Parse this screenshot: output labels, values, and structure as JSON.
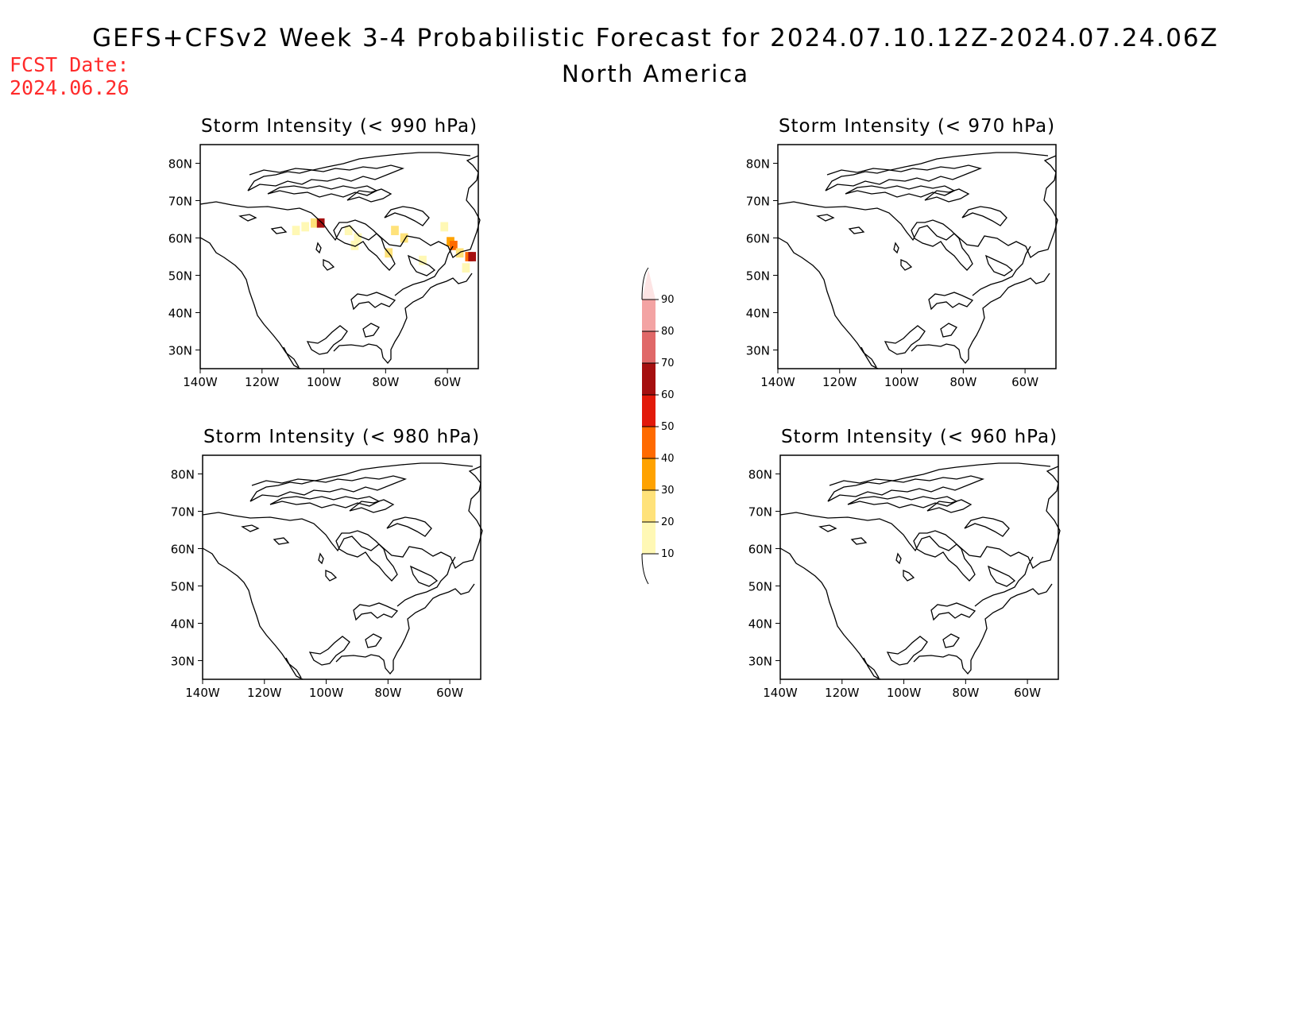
{
  "header": {
    "title": "GEFS+CFSv2 Week 3-4 Probabilistic Forecast for 2024.07.10.12Z-2024.07.24.06Z",
    "subtitle": "North America",
    "fcst_label": "FCST Date:",
    "fcst_date": "2024.06.26"
  },
  "axes": {
    "lat_ticks": [
      "80N",
      "70N",
      "60N",
      "50N",
      "40N",
      "30N"
    ],
    "lon_ticks": [
      "140W",
      "120W",
      "100W",
      "80W",
      "60W"
    ]
  },
  "panels": [
    {
      "title": "Storm Intensity (< 990 hPa)"
    },
    {
      "title": "Storm Intensity (< 970 hPa)"
    },
    {
      "title": "Storm Intensity (< 980 hPa)"
    },
    {
      "title": "Storm Intensity (< 960 hPa)"
    }
  ],
  "colorbar": {
    "levels": [
      "90",
      "80",
      "70",
      "60",
      "50",
      "40",
      "30",
      "20",
      "10"
    ],
    "colors": [
      "#fde4e4",
      "#f3a3a3",
      "#e06868",
      "#a50f0f",
      "#e21a0a",
      "#ff6a00",
      "#ffa200",
      "#ffe27a",
      "#fff8b5"
    ]
  },
  "chart_data": {
    "type": "heatmap",
    "domain": {
      "lon": [
        -140,
        -50
      ],
      "lat": [
        25,
        85
      ]
    },
    "panels": [
      {
        "title": "Storm Intensity (< 990 hPa)",
        "cells": [
          {
            "lon": -106,
            "lat": 63,
            "prob": 10
          },
          {
            "lon": -103,
            "lat": 64,
            "prob": 20
          },
          {
            "lon": -101,
            "lat": 64,
            "prob": 60
          },
          {
            "lon": -109,
            "lat": 62,
            "prob": 10
          },
          {
            "lon": -92,
            "lat": 62,
            "prob": 10
          },
          {
            "lon": -89,
            "lat": 60,
            "prob": 10
          },
          {
            "lon": -90,
            "lat": 58,
            "prob": 10
          },
          {
            "lon": -79,
            "lat": 56,
            "prob": 20
          },
          {
            "lon": -77,
            "lat": 62,
            "prob": 20
          },
          {
            "lon": -74,
            "lat": 60,
            "prob": 20
          },
          {
            "lon": -68,
            "lat": 54,
            "prob": 10
          },
          {
            "lon": -61,
            "lat": 63,
            "prob": 10
          },
          {
            "lon": -59,
            "lat": 59,
            "prob": 30
          },
          {
            "lon": -58,
            "lat": 58,
            "prob": 40
          },
          {
            "lon": -56,
            "lat": 56,
            "prob": 20
          },
          {
            "lon": -53,
            "lat": 55,
            "prob": 40
          },
          {
            "lon": -52,
            "lat": 55,
            "prob": 60
          },
          {
            "lon": -54,
            "lat": 52,
            "prob": 10
          }
        ]
      },
      {
        "title": "Storm Intensity (< 970 hPa)",
        "cells": []
      },
      {
        "title": "Storm Intensity (< 980 hPa)",
        "cells": []
      },
      {
        "title": "Storm Intensity (< 960 hPa)",
        "cells": []
      }
    ]
  }
}
